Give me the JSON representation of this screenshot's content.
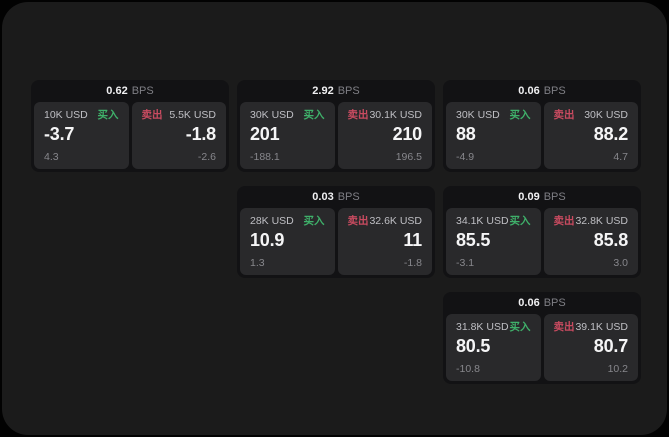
{
  "labels": {
    "bps_suffix": "BPS",
    "buy": "买入",
    "sell": "卖出"
  },
  "colors": {
    "page_background": "#020202",
    "panel_background": "#1b1b1b",
    "card_background": "#121214",
    "pane_background": "#29292b",
    "buy_accent": "#3fb06a",
    "sell_accent": "#c94b60",
    "value_text": "#f5f5f6",
    "muted_text": "#87878c"
  },
  "cards": [
    {
      "bps": "0.62",
      "buy": {
        "amount": "10K USD",
        "value": "-3.7",
        "delta": "4.3"
      },
      "sell": {
        "amount": "5.5K USD",
        "value": "-1.8",
        "delta": "-2.6"
      }
    },
    {
      "bps": "2.92",
      "buy": {
        "amount": "30K USD",
        "value": "201",
        "delta": "-188.1"
      },
      "sell": {
        "amount": "30.1K USD",
        "value": "210",
        "delta": "196.5"
      }
    },
    {
      "bps": "0.06",
      "buy": {
        "amount": "30K USD",
        "value": "88",
        "delta": "-4.9"
      },
      "sell": {
        "amount": "30K USD",
        "value": "88.2",
        "delta": "4.7"
      }
    },
    {
      "bps": "0.03",
      "buy": {
        "amount": "28K USD",
        "value": "10.9",
        "delta": "1.3"
      },
      "sell": {
        "amount": "32.6K USD",
        "value": "11",
        "delta": "-1.8"
      }
    },
    {
      "bps": "0.09",
      "buy": {
        "amount": "34.1K USD",
        "value": "85.5",
        "delta": "-3.1"
      },
      "sell": {
        "amount": "32.8K USD",
        "value": "85.8",
        "delta": "3.0"
      }
    },
    {
      "bps": "0.06",
      "buy": {
        "amount": "31.8K USD",
        "value": "80.5",
        "delta": "-10.8"
      },
      "sell": {
        "amount": "39.1K USD",
        "value": "80.7",
        "delta": "10.2"
      }
    }
  ]
}
